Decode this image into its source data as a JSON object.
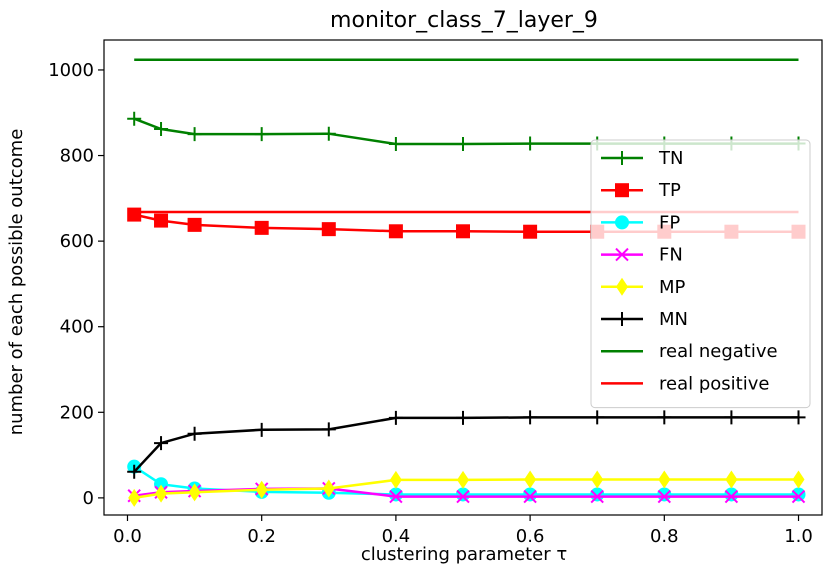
{
  "chart_data": {
    "type": "line",
    "title": "monitor_class_7_layer_9",
    "xlabel": "clustering parameter τ",
    "ylabel": "number of each possible outcome",
    "xlim": [
      -0.035,
      1.035
    ],
    "ylim": [
      -40,
      1070
    ],
    "xticks": [
      "0.0",
      "0.2",
      "0.4",
      "0.6",
      "0.8",
      "1.0"
    ],
    "yticks": [
      "0",
      "200",
      "400",
      "600",
      "800",
      "1000"
    ],
    "legend_position": "center-right",
    "x": [
      0.01,
      0.05,
      0.1,
      0.2,
      0.3,
      0.4,
      0.5,
      0.6,
      0.7,
      0.8,
      0.9,
      1.0
    ],
    "series": [
      {
        "name": "TN",
        "color": "#008000",
        "marker": "plus",
        "values": [
          886,
          862,
          850,
          850,
          851,
          827,
          827,
          828,
          828,
          828,
          828,
          828
        ]
      },
      {
        "name": "TP",
        "color": "#ff0000",
        "marker": "square",
        "values": [
          662,
          648,
          638,
          631,
          628,
          623,
          623,
          622,
          622,
          622,
          622,
          622
        ]
      },
      {
        "name": "FP",
        "color": "#00ffff",
        "marker": "circle",
        "values": [
          73,
          32,
          22,
          14,
          12,
          8,
          8,
          8,
          8,
          8,
          8,
          8
        ]
      },
      {
        "name": "FN",
        "color": "#ff00ff",
        "marker": "x",
        "values": [
          5,
          13,
          16,
          21,
          22,
          3,
          3,
          3,
          3,
          3,
          3,
          3
        ]
      },
      {
        "name": "MP",
        "color": "#ffff00",
        "marker": "diamond",
        "values": [
          0,
          10,
          13,
          19,
          22,
          42,
          42,
          43,
          43,
          43,
          43,
          43
        ]
      },
      {
        "name": "MN",
        "color": "#000000",
        "marker": "plus",
        "values": [
          61,
          128,
          150,
          159,
          160,
          187,
          187,
          188,
          188,
          188,
          188,
          188
        ]
      },
      {
        "name": "real negative",
        "color": "#008000",
        "marker": "none",
        "values": [
          1024,
          1024,
          1024,
          1024,
          1024,
          1024,
          1024,
          1024,
          1024,
          1024,
          1024,
          1024
        ]
      },
      {
        "name": "real positive",
        "color": "#ff0000",
        "marker": "none",
        "values": [
          668,
          668,
          668,
          668,
          668,
          668,
          668,
          668,
          668,
          668,
          668,
          668
        ]
      }
    ]
  }
}
